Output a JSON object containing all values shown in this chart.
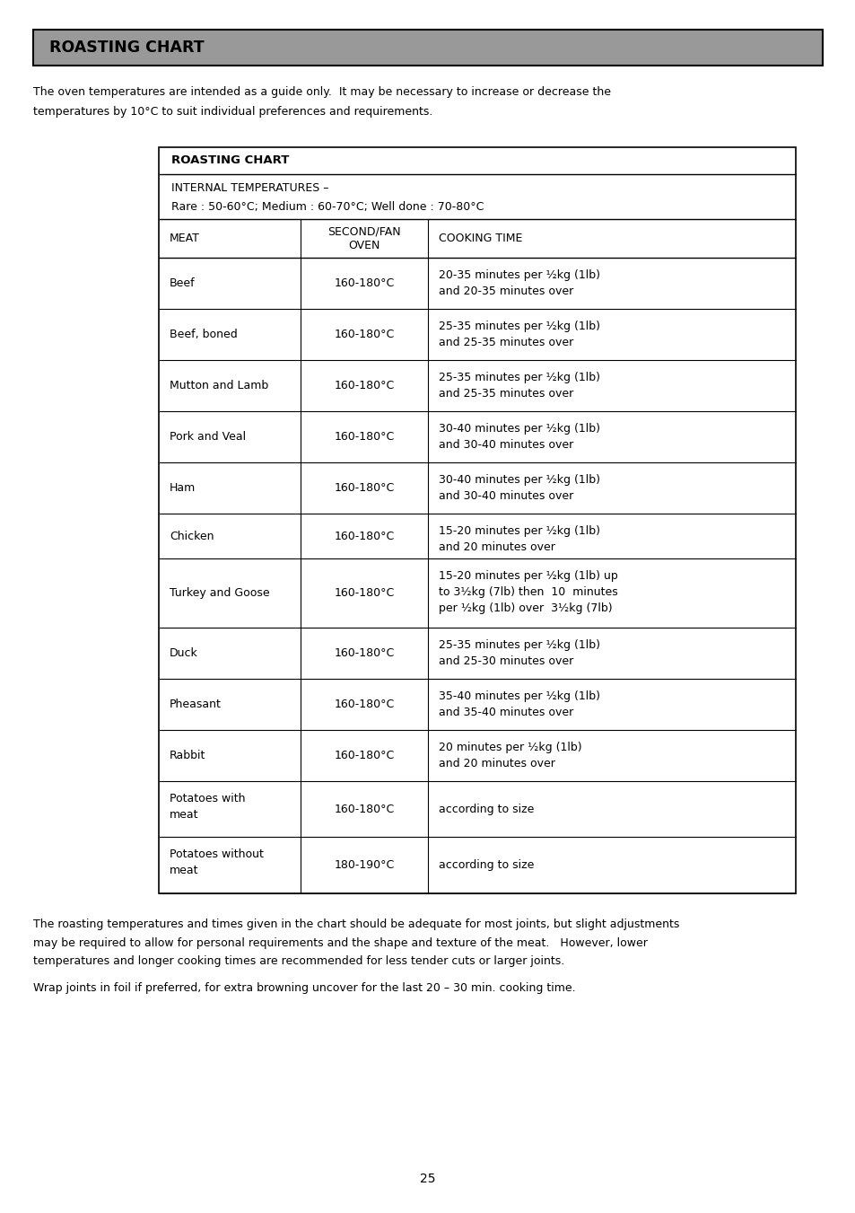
{
  "page_title": "ROASTING CHART",
  "page_title_bg": "#999999",
  "page_title_fg": "#000000",
  "intro_text_line1": "The oven temperatures are intended as a guide only.  It may be necessary to increase or decrease the",
  "intro_text_line2": "temperatures by 10°C to suit individual preferences and requirements.",
  "table_title": "ROASTING CHART",
  "internal_temp_line1": "INTERNAL TEMPERATURES –",
  "internal_temp_line2": "Rare : 50-60°C; Medium : 60-70°C; Well done : 70-80°C",
  "col_headers": [
    "MEAT",
    "SECOND/FAN\nOVEN",
    "COOKING TIME"
  ],
  "rows": [
    [
      "Beef",
      "160-180°C",
      "20-35 minutes per ½kg (1lb)\nand 20-35 minutes over"
    ],
    [
      "Beef, boned",
      "160-180°C",
      "25-35 minutes per ½kg (1lb)\nand 25-35 minutes over"
    ],
    [
      "Mutton and Lamb",
      "160-180°C",
      "25-35 minutes per ½kg (1lb)\nand 25-35 minutes over"
    ],
    [
      "Pork and Veal",
      "160-180°C",
      "30-40 minutes per ½kg (1lb)\nand 30-40 minutes over"
    ],
    [
      "Ham",
      "160-180°C",
      "30-40 minutes per ½kg (1lb)\nand 30-40 minutes over"
    ],
    [
      "Chicken",
      "160-180°C",
      "15-20 minutes per ½kg (1lb)\nand 20 minutes over"
    ],
    [
      "Turkey and Goose",
      "160-180°C",
      "15-20 minutes per ½kg (1lb) up\nto 3½kg (7lb) then  10  minutes\nper ½kg (1lb) over  3½kg (7lb)"
    ],
    [
      "Duck",
      "160-180°C",
      "25-35 minutes per ½kg (1lb)\nand 25-30 minutes over"
    ],
    [
      "Pheasant",
      "160-180°C",
      "35-40 minutes per ½kg (1lb)\nand 35-40 minutes over"
    ],
    [
      "Rabbit",
      "160-180°C",
      "20 minutes per ½kg (1lb)\nand 20 minutes over"
    ],
    [
      "Potatoes with\nmeat",
      "160-180°C",
      "according to size"
    ],
    [
      "Potatoes without\nmeat",
      "180-190°C",
      "according to size"
    ]
  ],
  "footer_text1_line1": "The roasting temperatures and times given in the chart should be adequate for most joints, but slight adjustments",
  "footer_text1_line2": "may be required to allow for personal requirements and the shape and texture of the meat.   However, lower",
  "footer_text1_line3": "temperatures and longer cooking times are recommended for less tender cuts or larger joints.",
  "footer_text2": "Wrap joints in foil if preferred, for extra browning uncover for the last 20 – 30 min. cooking time.",
  "page_number": "25",
  "bg_color": "#ffffff",
  "text_color": "#000000",
  "table_border_color": "#000000"
}
